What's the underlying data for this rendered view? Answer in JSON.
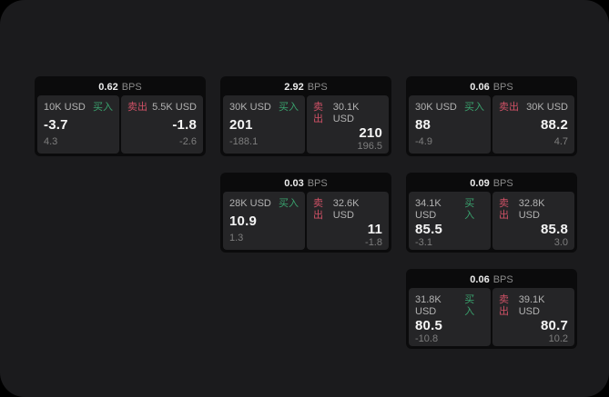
{
  "labels": {
    "bps_unit": "BPS",
    "buy": "买入",
    "sell": "卖出"
  },
  "colors": {
    "page_background": "#1b1b1d",
    "card_background": "#0b0b0c",
    "panel_background": "#252527",
    "buy_green": "#3aa26e",
    "sell_red": "#cf5166"
  },
  "cards": [
    {
      "bps": "0.62",
      "buy": {
        "size": "10K USD",
        "value": "-3.7",
        "sub": "4.3"
      },
      "sell": {
        "size": "5.5K USD",
        "value": "-1.8",
        "sub": "-2.6"
      }
    },
    {
      "bps": "2.92",
      "buy": {
        "size": "30K USD",
        "value": "201",
        "sub": "-188.1"
      },
      "sell": {
        "size": "30.1K USD",
        "value": "210",
        "sub": "196.5"
      }
    },
    {
      "bps": "0.06",
      "buy": {
        "size": "30K USD",
        "value": "88",
        "sub": "-4.9"
      },
      "sell": {
        "size": "30K USD",
        "value": "88.2",
        "sub": "4.7"
      }
    },
    {
      "bps": "0.03",
      "buy": {
        "size": "28K USD",
        "value": "10.9",
        "sub": "1.3"
      },
      "sell": {
        "size": "32.6K USD",
        "value": "11",
        "sub": "-1.8"
      }
    },
    {
      "bps": "0.09",
      "buy": {
        "size": "34.1K USD",
        "value": "85.5",
        "sub": "-3.1"
      },
      "sell": {
        "size": "32.8K USD",
        "value": "85.8",
        "sub": "3.0"
      }
    },
    {
      "bps": "0.06",
      "buy": {
        "size": "31.8K USD",
        "value": "80.5",
        "sub": "-10.8"
      },
      "sell": {
        "size": "39.1K USD",
        "value": "80.7",
        "sub": "10.2"
      }
    }
  ]
}
